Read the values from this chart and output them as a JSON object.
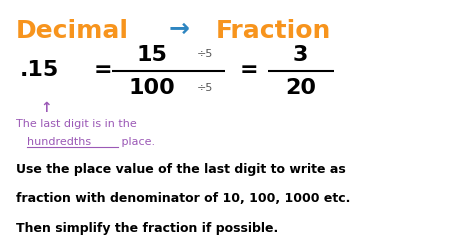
{
  "title_decimal": "Decimal",
  "title_arrow": "→",
  "title_fraction": "Fraction",
  "decimal_color": "#F7941D",
  "arrow_color": "#2E86C1",
  "fraction_title_color": "#F7941D",
  "dot15": ".15",
  "equals1": "=",
  "numerator1": "15",
  "denominator1": "100",
  "div5_num": "÷5",
  "div5_den": "÷5",
  "equals2": "=",
  "numerator2": "3",
  "denominator2": "20",
  "arrow_up": "↑",
  "note_line1": "The last digit is in the",
  "note_line2_plain": "hundredths",
  "note_line2_after": " place.",
  "note_color": "#9B59B6",
  "underline_color": "#9B59B6",
  "body_line1": "Use the place value of the last digit to write as",
  "body_line2": "fraction with denominator of 10, 100, 1000 etc.",
  "body_line3": "Then simplify the fraction if possible.",
  "body_color": "#000000",
  "bg_color": "#ffffff",
  "math_color": "#000000",
  "div_color": "#555555"
}
